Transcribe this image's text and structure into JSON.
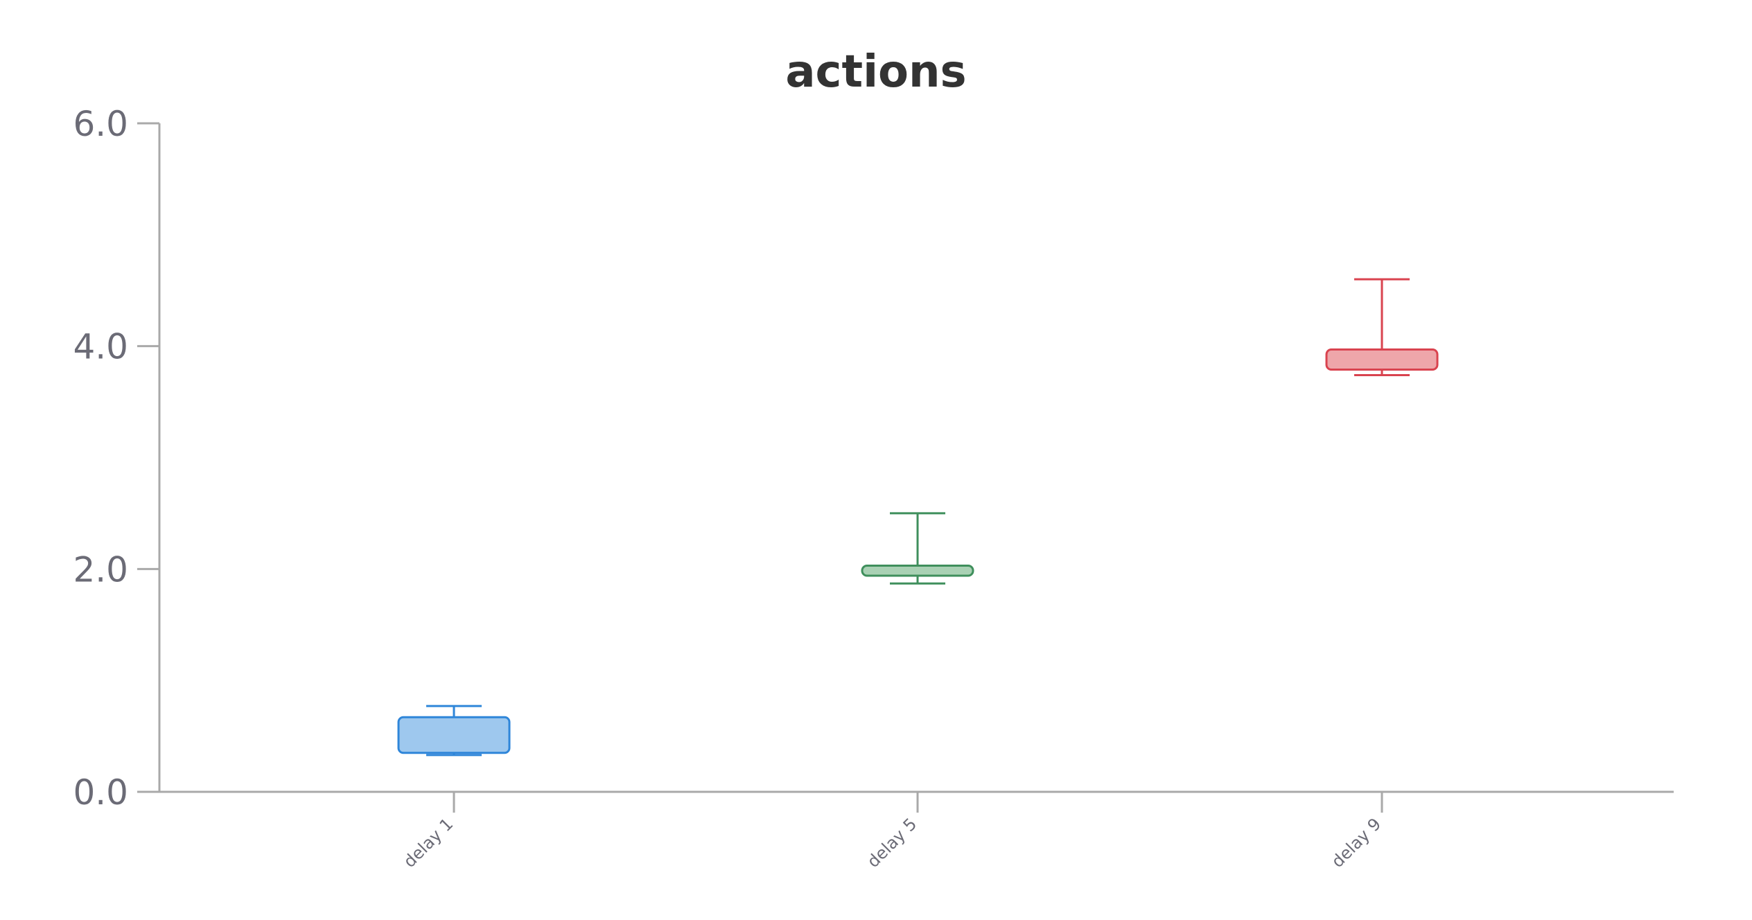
{
  "chart_data": {
    "type": "box",
    "title": "actions",
    "xlabel": "",
    "ylabel": "",
    "ylim": [
      0,
      6
    ],
    "y_ticks": [
      "0.0",
      "2.0",
      "4.0",
      "6.0"
    ],
    "y_tick_values": [
      0,
      2,
      4,
      6
    ],
    "grid": false,
    "categories": [
      "delay 1",
      "delay 5",
      "delay 9"
    ],
    "boxes": [
      {
        "category": "delay 1",
        "whisker_low": 0.33,
        "q1": 0.35,
        "q3": 0.67,
        "whisker_high": 0.77,
        "stroke": "#2f86d9",
        "fill": "#9ec8ee"
      },
      {
        "category": "delay 5",
        "whisker_low": 1.87,
        "q1": 1.94,
        "q3": 2.03,
        "whisker_high": 2.5,
        "stroke": "#3f8f5c",
        "fill": "#a9d1b4"
      },
      {
        "category": "delay 9",
        "whisker_low": 3.74,
        "q1": 3.79,
        "q3": 3.97,
        "whisker_high": 4.6,
        "stroke": "#d9434f",
        "fill": "#eea6aa"
      }
    ]
  }
}
